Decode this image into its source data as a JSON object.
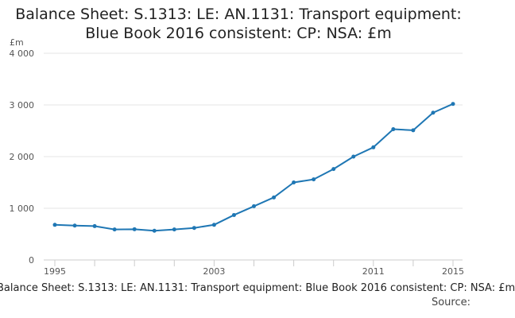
{
  "chart_data": {
    "type": "line",
    "title_lines": [
      "Balance Sheet: S.1313: LE: AN.1131: Transport equipment:",
      "Blue Book 2016 consistent: CP: NSA: £m"
    ],
    "ylabel": "£m",
    "xlabel": "",
    "caption": "Balance Sheet: S.1313: LE: AN.1131: Transport equipment: Blue Book 2016 consistent: CP: NSA: £m",
    "source": "Source:",
    "x": [
      1995,
      1996,
      1997,
      1998,
      1999,
      2000,
      2001,
      2002,
      2003,
      2004,
      2005,
      2006,
      2007,
      2008,
      2009,
      2010,
      2011,
      2012,
      2013,
      2014,
      2015
    ],
    "series": [
      {
        "name": "Transport equipment",
        "color": "#1f77b4",
        "values": [
          680,
          665,
          655,
          590,
          595,
          565,
          590,
          620,
          680,
          870,
          1040,
          1210,
          1500,
          1560,
          1760,
          2000,
          2180,
          2530,
          2510,
          2850,
          3020
        ]
      }
    ],
    "ylim": [
      0,
      4000
    ],
    "xlim": [
      1995,
      2015
    ],
    "yticks": [
      {
        "value": 0,
        "label": "0"
      },
      {
        "value": 1000,
        "label": "1 000"
      },
      {
        "value": 2000,
        "label": "2 000"
      },
      {
        "value": 3000,
        "label": "3 000"
      },
      {
        "value": 4000,
        "label": "4 000"
      }
    ],
    "xticks": [
      1995,
      1997,
      1999,
      2001,
      2003,
      2005,
      2007,
      2009,
      2011,
      2013,
      2015
    ],
    "xtick_labels": [
      {
        "value": 1995,
        "label": "1995"
      },
      {
        "value": 2003,
        "label": "2003"
      },
      {
        "value": 2011,
        "label": "2011"
      },
      {
        "value": 2015,
        "label": "2015"
      }
    ],
    "grid": true,
    "colors": {
      "line": "#1f77b4",
      "grid": "#e6e6e6",
      "axis": "#cccccc"
    }
  }
}
